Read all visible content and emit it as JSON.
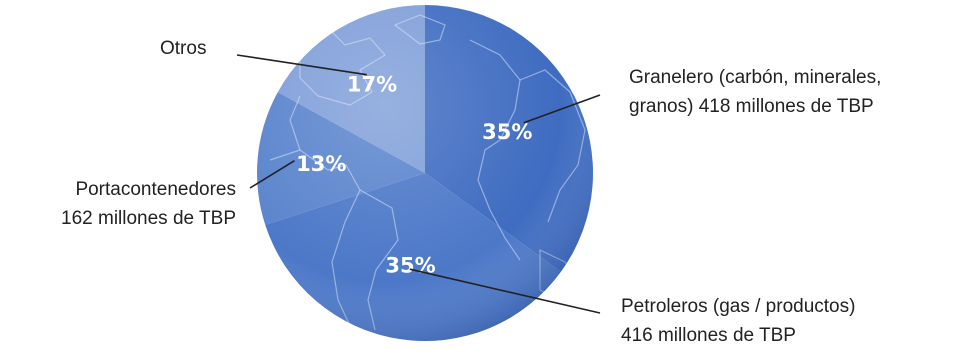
{
  "chart_data": {
    "type": "pie",
    "start_angle_deg": 0,
    "direction": "clockwise",
    "slices": [
      {
        "key": "granelero",
        "value": 35,
        "percent_label": "35%",
        "label_lines": [
          "Granelero (carbón, minerales,",
          "granos)  418 millones de TBP"
        ],
        "color": "#3f6cc1"
      },
      {
        "key": "petroleros",
        "value": 35,
        "percent_label": "35%",
        "label_lines": [
          "Petroleros (gas / productos)",
          "416 millones de TBP"
        ],
        "color": "#4c78c8"
      },
      {
        "key": "portacontenedores",
        "value": 13,
        "percent_label": "13%",
        "label_lines": [
          "Portacontenedores",
          "162 millones de TBP"
        ],
        "color": "#5a84cd"
      },
      {
        "key": "otros",
        "value": 17,
        "percent_label": "17%",
        "label_lines": [
          "Otros"
        ],
        "color": "#809fd9"
      }
    ]
  }
}
